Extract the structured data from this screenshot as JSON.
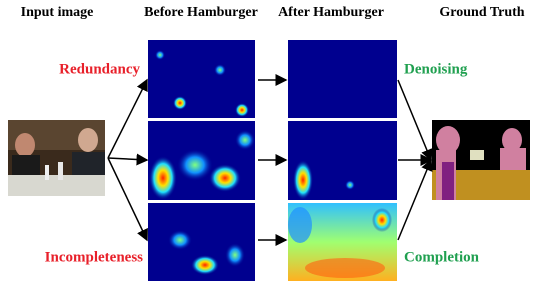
{
  "header": {
    "columns": [
      "Input image",
      "Before Hamburger",
      "After Hamburger",
      "Ground Truth"
    ]
  },
  "labels": {
    "redundancy": "Redundancy",
    "incompleteness": "Incompleteness",
    "denoising": "Denoising",
    "completion": "Completion"
  }
}
